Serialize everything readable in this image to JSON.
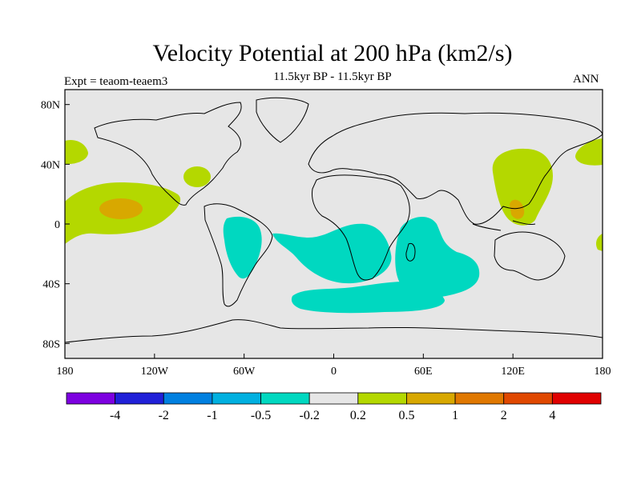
{
  "chart_data": {
    "type": "heatmap",
    "title": "Velocity Potential at 200 hPa (km2/s)",
    "subtitle": "11.5kyr BP - 11.5kyr BP",
    "left_annotation": "Expt = teaom-teaem3",
    "right_annotation": "ANN",
    "map": {
      "projection": "cylindrical equidistant",
      "lon_range": [
        -180,
        180
      ],
      "lat_range": [
        -90,
        90
      ],
      "background_color": "#e6e6e6",
      "x_ticks": [
        "180",
        "120W",
        "60W",
        "0",
        "60E",
        "120E",
        "180"
      ],
      "y_ticks": [
        "80N",
        "40N",
        "0",
        "40S",
        "80S"
      ]
    },
    "colorbar": {
      "colors": [
        "#7d00e0",
        "#2020d8",
        "#0080e0",
        "#00b0e0",
        "#00d8c0",
        "#e6e6e6",
        "#b4d800",
        "#d8a800",
        "#e07800",
        "#e04800",
        "#e00000"
      ],
      "levels": [
        "-4",
        "-2",
        "-1",
        "-0.5",
        "-0.2",
        "0.2",
        "0.5",
        "1",
        "2",
        "4"
      ]
    },
    "regions": [
      {
        "name": "central pacific positive",
        "level": "0.2 to 0.5",
        "color": "#b4d800"
      },
      {
        "name": "central pacific core",
        "level": "0.5 to 1",
        "color": "#d8a800"
      },
      {
        "name": "east asia positive",
        "level": "0.2 to 0.5",
        "color": "#b4d800"
      },
      {
        "name": "south atlantic / africa / indian ocean negative",
        "level": "-0.5 to -0.2",
        "color": "#00d8c0"
      }
    ]
  }
}
